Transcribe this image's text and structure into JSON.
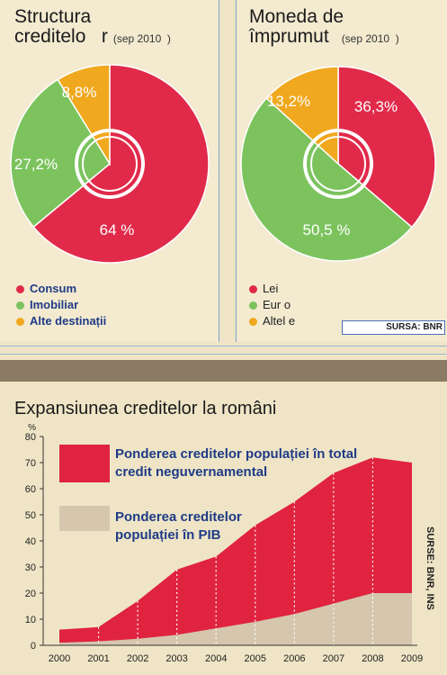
{
  "colors": {
    "consum": "#e12a4a",
    "imobiliar": "#7cc35e",
    "alte": "#f0a81e",
    "population_share": "#e0233f",
    "pib_share": "#d5c6ad",
    "background": "#efe5c6"
  },
  "left_panel": {
    "title_line1": "Structura",
    "title_line2": "creditelo   r",
    "subtitle": "(sep 2010  )",
    "legend": [
      "Consum",
      "Imobiliar",
      "Alte destinații"
    ],
    "labels": [
      "64 %",
      "27,2%",
      "8,8%"
    ]
  },
  "right_panel": {
    "title_line1": "Moneda de",
    "title_line2": "împrumut",
    "subtitle": "(sep 2010  )",
    "legend": [
      "Lei",
      "Eur o",
      "Altel e"
    ],
    "labels": [
      "36,3%",
      "50,5 %",
      "13,2%"
    ],
    "source": "SURSA: BNR"
  },
  "bottom": {
    "title": "Expansiunea creditelor la români",
    "source": "SURSE: BNR, INS",
    "legend_total_line1": "Ponderea creditelor populației în total",
    "legend_total_line2": "credit neguvernamental",
    "legend_pib_line1": "Ponderea creditelor",
    "legend_pib_line2": "populației în PIB"
  },
  "chart_data": [
    {
      "type": "pie",
      "title": "Structura creditelo   r (sep 2010  )",
      "categories": [
        "Consum",
        "Imobiliar",
        "Alte destinații"
      ],
      "values": [
        64,
        27.2,
        8.8
      ],
      "labels": [
        "64 %",
        "27,2%",
        "8,8%"
      ],
      "colors": [
        "#e12a4a",
        "#7cc35e",
        "#f0a81e"
      ],
      "legend": "bottom-left"
    },
    {
      "type": "pie",
      "title": "Moneda de împrumut (sep 2010  )",
      "categories": [
        "Lei",
        "Eur o",
        "Altel e"
      ],
      "values": [
        36.3,
        50.5,
        13.2
      ],
      "labels": [
        "36,3%",
        "50,5 %",
        "13,2%"
      ],
      "colors": [
        "#e12a4a",
        "#7cc35e",
        "#f0a81e"
      ],
      "legend": "bottom-left"
    },
    {
      "type": "area",
      "title": "Expansiunea creditelor la români",
      "ylabel": "%",
      "ylim": [
        0,
        80
      ],
      "yticks": [
        0,
        10,
        20,
        30,
        40,
        50,
        60,
        70,
        80
      ],
      "x": [
        "2000",
        "2001",
        "2002",
        "2003",
        "2004",
        "2005",
        "2006",
        "2007",
        "2008",
        "2009"
      ],
      "series": [
        {
          "name": "Ponderea creditelor populației în total credit neguvernamental",
          "values": [
            6,
            7,
            17,
            29,
            34,
            46,
            55,
            66,
            72,
            70
          ]
        },
        {
          "name": "Ponderea creditelor populației în PIB",
          "values": [
            1,
            1.5,
            2.5,
            4,
            6.5,
            9,
            12,
            16,
            20,
            20
          ]
        }
      ],
      "legend": "top-left",
      "grid": false
    }
  ]
}
